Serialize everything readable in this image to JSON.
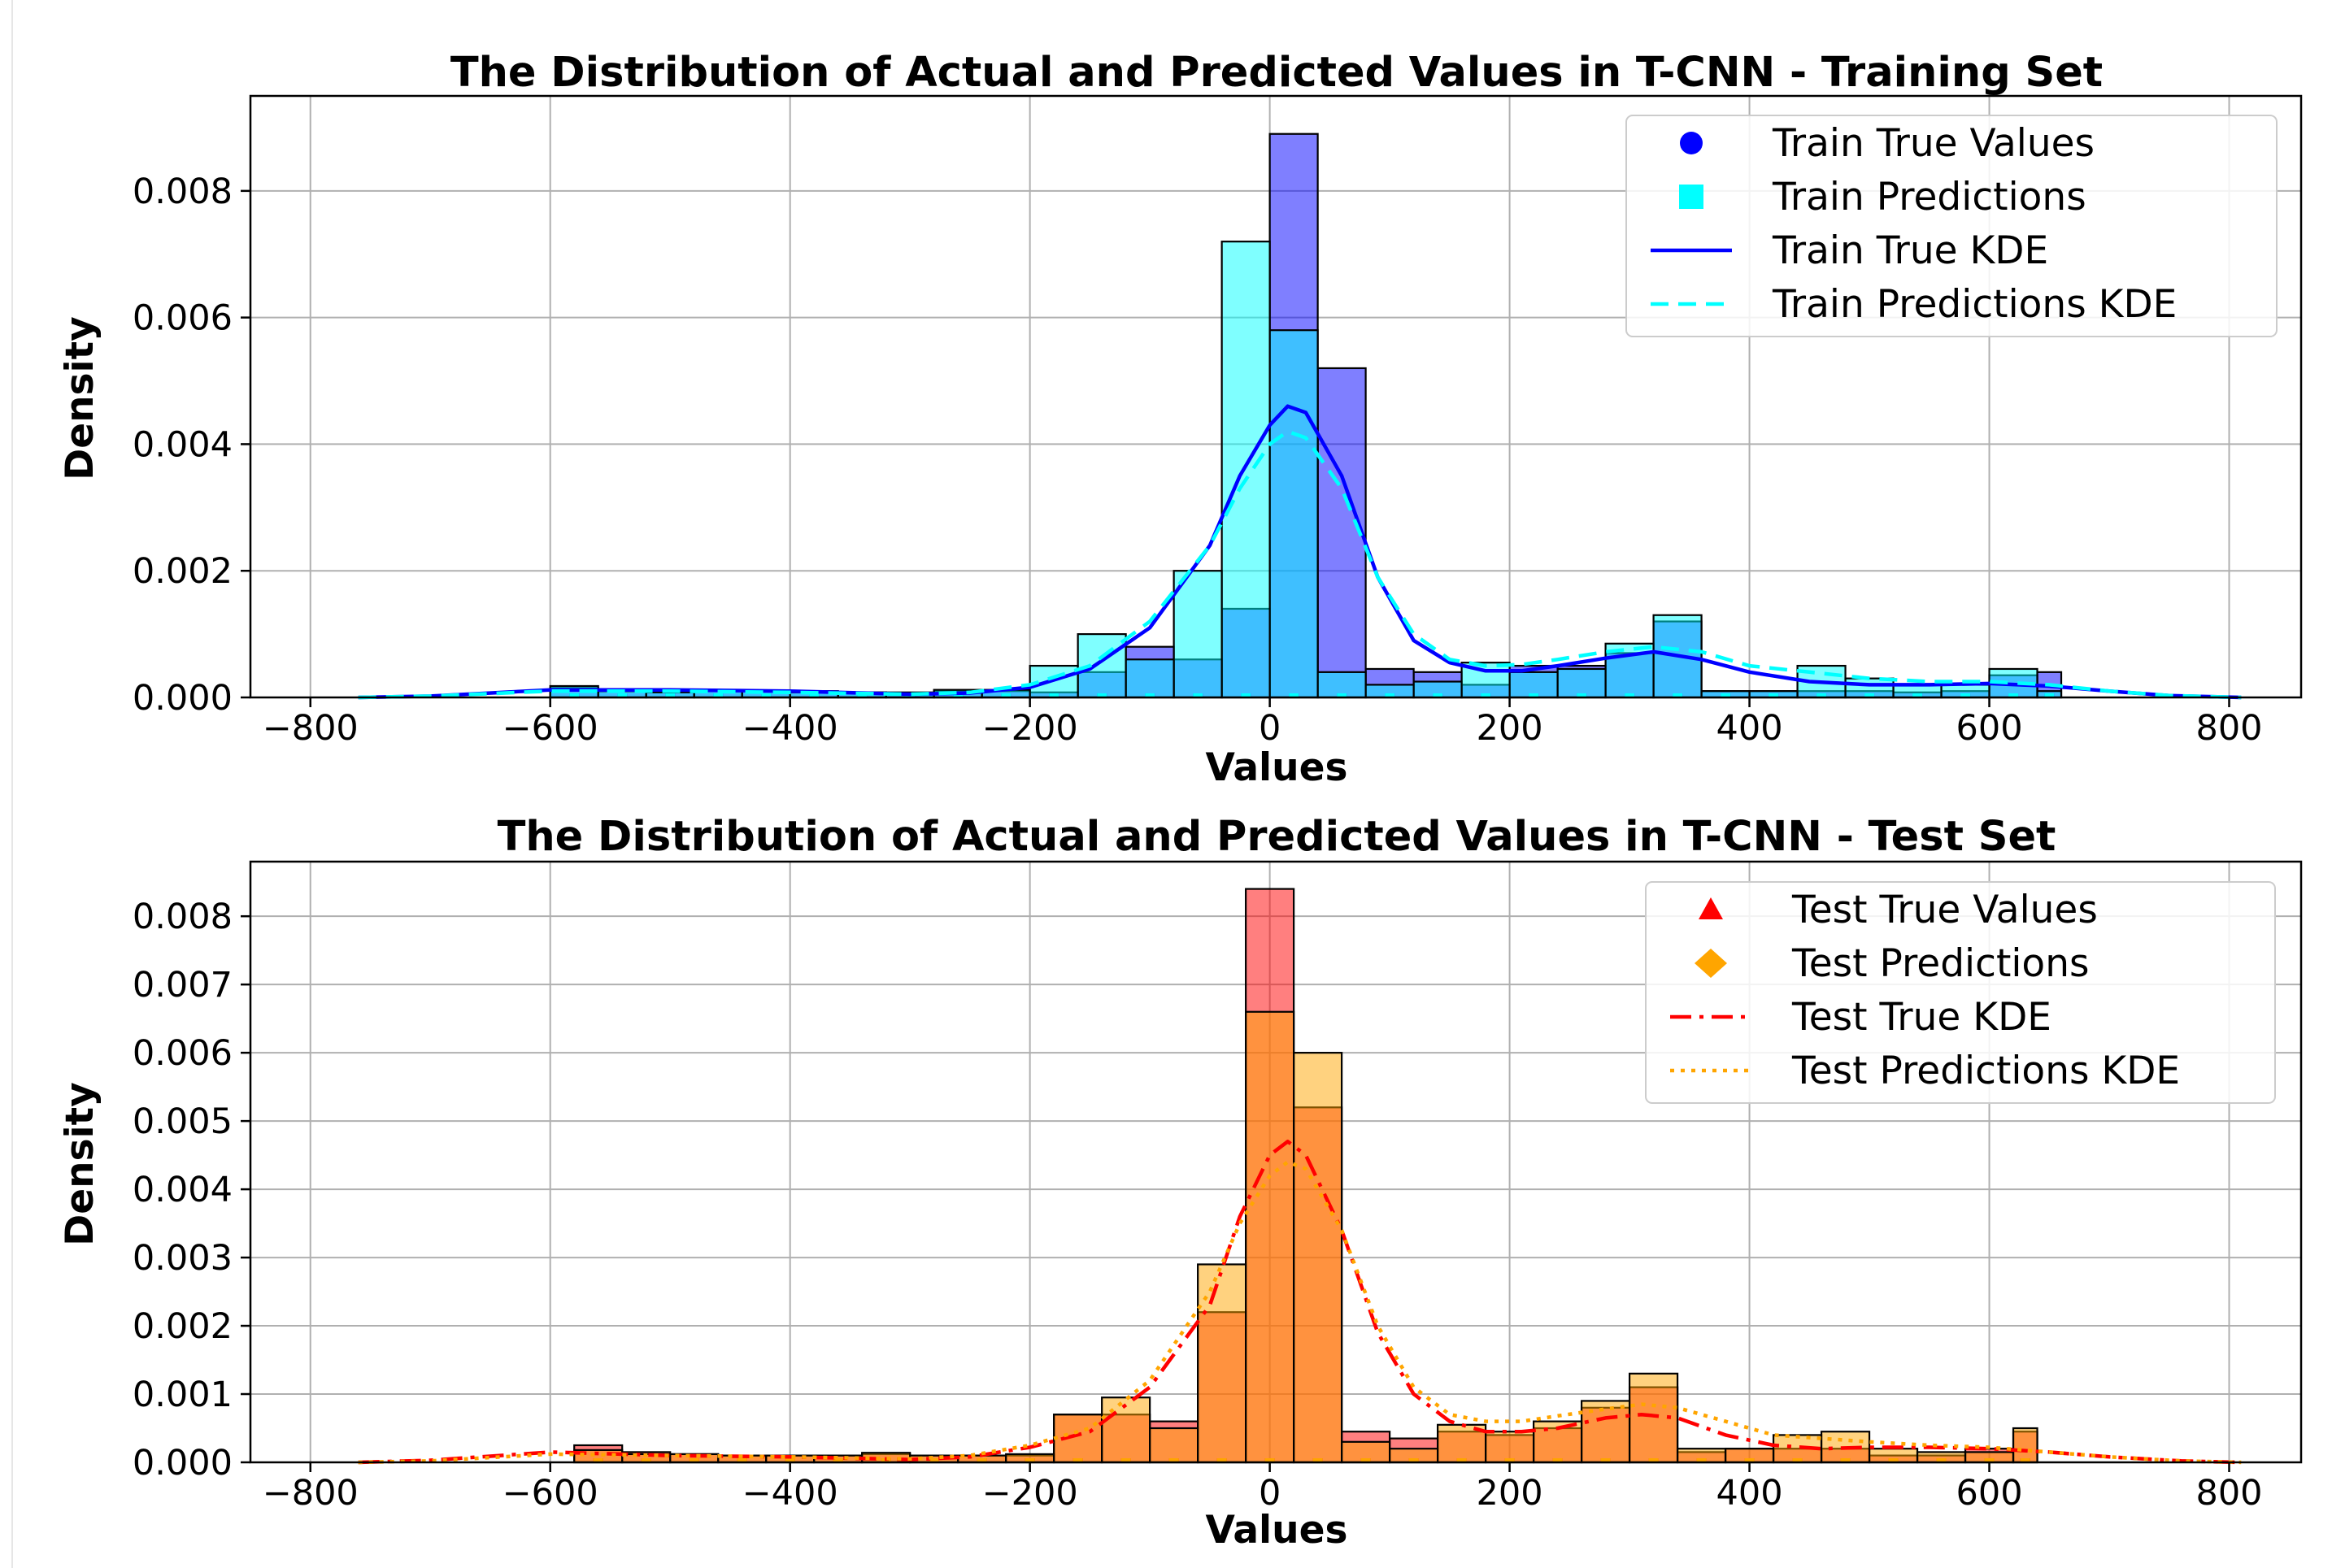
{
  "colors": {
    "train_true": "#0000ff",
    "train_pred": "#00ffff",
    "test_true": "#ff0000",
    "test_pred": "#ffa500",
    "grid": "#b0b0b0"
  },
  "chart_data": [
    {
      "type": "bar",
      "subtype": "histogram-with-kde",
      "title": "The Distribution of Actual and Predicted Values in T-CNN - Training Set",
      "xlabel": "Values",
      "ylabel": "Density",
      "xlim": [
        -850,
        860
      ],
      "ylim": [
        0,
        0.0095
      ],
      "xticks": [
        -800,
        -600,
        -400,
        -200,
        0,
        200,
        400,
        600,
        800
      ],
      "xtick_labels": [
        "−800",
        "−600",
        "−400",
        "−200",
        "0",
        "200",
        "400",
        "600",
        "800"
      ],
      "yticks": [
        0,
        0.002,
        0.004,
        0.006,
        0.008
      ],
      "ytick_labels": [
        "0.000",
        "0.002",
        "0.004",
        "0.006",
        "0.008"
      ],
      "grid": true,
      "legend_position": "top-right",
      "legend": [
        {
          "label": "Train True Values",
          "marker": "circle",
          "color": "#0000ff"
        },
        {
          "label": "Train Predictions",
          "marker": "square",
          "color": "#00ffff"
        },
        {
          "label": "Train True KDE",
          "line": "solid",
          "color": "#0000ff"
        },
        {
          "label": "Train Predictions KDE",
          "line": "dashed",
          "color": "#00ffff"
        }
      ],
      "bin_edges": [
        -600,
        -560,
        -520,
        -480,
        -440,
        -400,
        -360,
        -320,
        -280,
        -240,
        -200,
        -160,
        -120,
        -80,
        -40,
        0,
        40,
        80,
        120,
        160,
        200,
        240,
        280,
        320,
        360,
        400,
        440,
        480,
        520,
        560,
        600,
        640,
        660
      ],
      "series": [
        {
          "name": "Train True Values",
          "color": "#0000ff",
          "values": [
            0.00015,
            0.0001,
            0.0001,
            0.0001,
            0.0001,
            0.0001,
            8e-05,
            6e-05,
            0.0001,
            0.0001,
            8e-05,
            0.0004,
            0.0008,
            0.0006,
            0.0014,
            0.0089,
            0.0052,
            0.00045,
            0.0004,
            0.0002,
            0.0005,
            0.0005,
            0.0007,
            0.0012,
            0.0001,
            0.0001,
            0.0001,
            0.0001,
            8e-05,
            0.0001,
            0.00035,
            0.0004
          ]
        },
        {
          "name": "Train Predictions",
          "color": "#00ffff",
          "values": [
            0.00018,
            0.0001,
            8e-05,
            0.0001,
            0.0001,
            8e-05,
            8e-05,
            8e-05,
            0.00012,
            0.00012,
            0.0005,
            0.001,
            0.0006,
            0.002,
            0.0072,
            0.0058,
            0.0004,
            0.0002,
            0.00025,
            0.00055,
            0.0004,
            0.00045,
            0.00085,
            0.0013,
            0.0001,
            0.0001,
            0.0005,
            0.0003,
            0.0002,
            0.0002,
            0.00045,
            0.0001
          ]
        }
      ],
      "kde": [
        {
          "name": "Train True KDE",
          "x": [
            -760,
            -700,
            -600,
            -500,
            -400,
            -300,
            -250,
            -200,
            -150,
            -100,
            -50,
            -25,
            0,
            15,
            30,
            60,
            90,
            120,
            150,
            180,
            210,
            240,
            280,
            320,
            360,
            400,
            450,
            500,
            550,
            600,
            650,
            700,
            750,
            810
          ],
          "y": [
            0,
            2e-05,
            0.00012,
            0.00012,
            0.0001,
            5e-05,
            7e-05,
            0.00016,
            0.00045,
            0.0011,
            0.0024,
            0.0035,
            0.0043,
            0.0046,
            0.0045,
            0.0035,
            0.0019,
            0.0009,
            0.00055,
            0.00042,
            0.00042,
            0.0005,
            0.00062,
            0.00072,
            0.0006,
            0.0004,
            0.00025,
            0.0002,
            0.0002,
            0.00022,
            0.00018,
            0.0001,
            3e-05,
            0
          ]
        },
        {
          "name": "Train Predictions KDE",
          "x": [
            -760,
            -700,
            -600,
            -500,
            -400,
            -300,
            -250,
            -200,
            -150,
            -100,
            -50,
            -25,
            0,
            15,
            30,
            60,
            90,
            120,
            150,
            180,
            210,
            240,
            280,
            320,
            360,
            400,
            450,
            500,
            550,
            600,
            650,
            700,
            750,
            810
          ],
          "y": [
            0,
            2e-05,
            0.0001,
            0.0001,
            8e-05,
            5e-05,
            8e-05,
            0.0002,
            0.0005,
            0.0012,
            0.0024,
            0.0033,
            0.004,
            0.0042,
            0.0041,
            0.0033,
            0.0019,
            0.001,
            0.0006,
            0.0005,
            0.00052,
            0.0006,
            0.00072,
            0.0008,
            0.00072,
            0.0005,
            0.0004,
            0.0003,
            0.00025,
            0.00025,
            0.0002,
            0.0001,
            3e-05,
            0
          ]
        }
      ]
    },
    {
      "type": "bar",
      "subtype": "histogram-with-kde",
      "title": "The Distribution of Actual and Predicted Values in T-CNN - Test Set",
      "xlabel": "Values",
      "ylabel": "Density",
      "xlim": [
        -850,
        860
      ],
      "ylim": [
        0,
        0.0088
      ],
      "xticks": [
        -800,
        -600,
        -400,
        -200,
        0,
        200,
        400,
        600,
        800
      ],
      "xtick_labels": [
        "−800",
        "−600",
        "−400",
        "−200",
        "0",
        "200",
        "400",
        "600",
        "800"
      ],
      "yticks": [
        0,
        0.001,
        0.002,
        0.003,
        0.004,
        0.005,
        0.006,
        0.007,
        0.008
      ],
      "ytick_labels": [
        "0.000",
        "0.001",
        "0.002",
        "0.003",
        "0.004",
        "0.005",
        "0.006",
        "0.007",
        "0.008"
      ],
      "grid": true,
      "legend_position": "top-right",
      "legend": [
        {
          "label": "Test True Values",
          "marker": "triangle",
          "color": "#ff0000"
        },
        {
          "label": "Test Predictions",
          "marker": "diamond",
          "color": "#ffa500"
        },
        {
          "label": "Test True KDE",
          "line": "dashdot",
          "color": "#ff0000"
        },
        {
          "label": "Test Predictions KDE",
          "line": "dotted",
          "color": "#ffa500"
        }
      ],
      "bin_edges": [
        -580,
        -540,
        -500,
        -460,
        -420,
        -380,
        -340,
        -300,
        -260,
        -220,
        -180,
        -140,
        -100,
        -60,
        -20,
        20,
        60,
        100,
        140,
        180,
        220,
        260,
        300,
        340,
        380,
        420,
        460,
        500,
        540,
        580,
        620,
        640
      ],
      "series": [
        {
          "name": "Test True Values",
          "color": "#ff0000",
          "values": [
            0.00025,
            0.00015,
            0.00012,
            0.0001,
            0.0001,
            0.0001,
            0.00012,
            0.0001,
            0.0001,
            0.0001,
            0.0007,
            0.0007,
            0.0006,
            0.0022,
            0.0084,
            0.0052,
            0.00045,
            0.00035,
            0.00045,
            0.0004,
            0.0005,
            0.0008,
            0.0011,
            0.00015,
            0.0002,
            0.0002,
            0.0002,
            0.0001,
            0.0001,
            0.0002,
            0.00045
          ]
        },
        {
          "name": "Test Predictions",
          "color": "#ffa500",
          "values": [
            0.00018,
            0.00012,
            0.00012,
            0.0001,
            0.0001,
            0.0001,
            0.00014,
            0.0001,
            0.0001,
            0.00012,
            0.0007,
            0.00095,
            0.0005,
            0.0029,
            0.0066,
            0.006,
            0.0003,
            0.0002,
            0.00055,
            0.00045,
            0.0006,
            0.0009,
            0.0013,
            0.0002,
            0.0002,
            0.0004,
            0.00045,
            0.0002,
            0.00015,
            0.00015,
            0.0005
          ]
        }
      ],
      "kde": [
        {
          "name": "Test True KDE",
          "x": [
            -760,
            -700,
            -600,
            -500,
            -400,
            -300,
            -250,
            -200,
            -150,
            -100,
            -50,
            -25,
            0,
            15,
            30,
            60,
            90,
            120,
            150,
            180,
            210,
            240,
            280,
            310,
            340,
            380,
            420,
            460,
            500,
            550,
            600,
            650,
            700,
            760,
            810
          ],
          "y": [
            0,
            3e-05,
            0.00015,
            0.0001,
            8e-05,
            4e-05,
            8e-05,
            0.00022,
            0.00045,
            0.0011,
            0.0023,
            0.0036,
            0.0045,
            0.0047,
            0.0045,
            0.0034,
            0.0019,
            0.001,
            0.0006,
            0.00045,
            0.00045,
            0.0005,
            0.00065,
            0.0007,
            0.00065,
            0.0004,
            0.00025,
            0.0002,
            0.00022,
            0.00022,
            0.0002,
            0.00015,
            8e-05,
            2e-05,
            0
          ]
        },
        {
          "name": "Test Predictions KDE",
          "x": [
            -760,
            -700,
            -600,
            -500,
            -400,
            -300,
            -250,
            -200,
            -150,
            -100,
            -50,
            -25,
            0,
            15,
            30,
            60,
            90,
            120,
            150,
            180,
            210,
            240,
            280,
            310,
            340,
            380,
            420,
            460,
            500,
            550,
            600,
            650,
            700,
            760,
            810
          ],
          "y": [
            0,
            2e-05,
            0.00012,
            0.0001,
            8e-05,
            5e-05,
            0.0001,
            0.00025,
            0.0005,
            0.0012,
            0.0025,
            0.0035,
            0.0042,
            0.0044,
            0.0043,
            0.0034,
            0.002,
            0.0011,
            0.0007,
            0.0006,
            0.0006,
            0.00068,
            0.00078,
            0.00085,
            0.0008,
            0.0006,
            0.0004,
            0.00035,
            0.0003,
            0.00025,
            0.00022,
            0.00015,
            8e-05,
            2e-05,
            0
          ]
        }
      ]
    }
  ]
}
